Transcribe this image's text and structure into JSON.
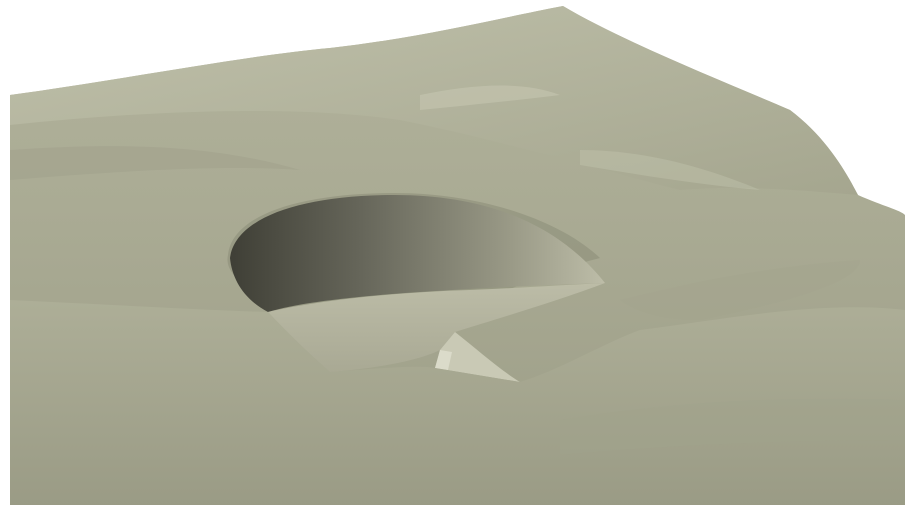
{
  "scene": {
    "subject": "terrain-surface-with-excavated-pit",
    "colors": {
      "background": "#ffffff",
      "terrain_light": "#c6c6b1",
      "terrain_mid": "#acad96",
      "terrain_dark": "#8f907b",
      "pit_wall_dark": "#4f4f44",
      "pit_wall_light": "#b9b9a4",
      "pit_floor": "#b4b49f",
      "ramp": "#c7c7b3"
    }
  }
}
